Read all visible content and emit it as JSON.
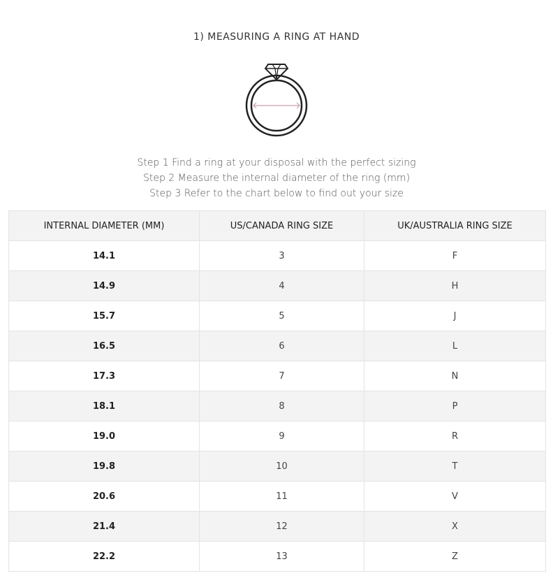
{
  "title": "1)  MEASURING A RING AT HAND",
  "accent_color": "#c9a0a8",
  "illustration_icon": "ring-diameter-icon",
  "steps": [
    "Step 1 Find a ring at your disposal with the perfect sizing",
    "Step 2 Measure the internal diameter of the ring (mm)",
    "Step 3 Refer to the chart below to find out your size"
  ],
  "table": {
    "headers": [
      "INTERNAL DIAMETER (MM)",
      "US/CANADA RING SIZE",
      "UK/AUSTRALIA RING SIZE"
    ],
    "rows": [
      [
        "14.1",
        "3",
        "F"
      ],
      [
        "14.9",
        "4",
        "H"
      ],
      [
        "15.7",
        "5",
        "J"
      ],
      [
        "16.5",
        "6",
        "L"
      ],
      [
        "17.3",
        "7",
        "N"
      ],
      [
        "18.1",
        "8",
        "P"
      ],
      [
        "19.0",
        "9",
        "R"
      ],
      [
        "19.8",
        "10",
        "T"
      ],
      [
        "20.6",
        "11",
        "V"
      ],
      [
        "21.4",
        "12",
        "X"
      ],
      [
        "22.2",
        "13",
        "Z"
      ]
    ]
  }
}
